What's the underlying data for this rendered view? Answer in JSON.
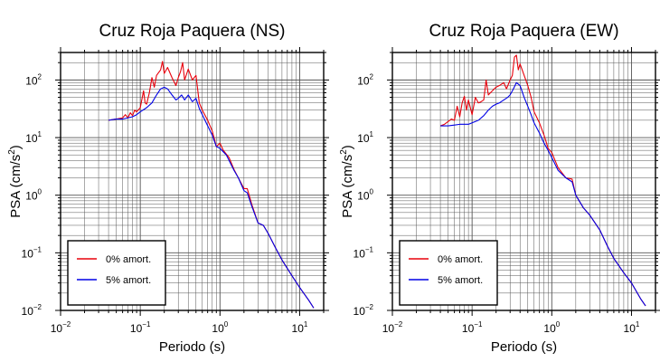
{
  "chart_data": [
    {
      "type": "line",
      "title": "Cruz Roja Paquera (NS)",
      "xlabel": "Periodo (s)",
      "ylabel": "PSA (cm/s²)",
      "xscale": "log",
      "yscale": "log",
      "xlim": [
        0.01,
        20
      ],
      "ylim": [
        0.01,
        300
      ],
      "grid": true,
      "legend_position": "bottom-left",
      "x_ticks": [
        "10⁻²",
        "10⁻¹",
        "10⁰",
        "10¹"
      ],
      "y_ticks": [
        "10⁻²",
        "10⁻¹",
        "10⁰",
        "10¹",
        "10²"
      ],
      "series": [
        {
          "name": "0% amort.",
          "color": "#e8000b",
          "points": [
            [
              0.04,
              20
            ],
            [
              0.05,
              21
            ],
            [
              0.06,
              22
            ],
            [
              0.065,
              25
            ],
            [
              0.07,
              22
            ],
            [
              0.075,
              27
            ],
            [
              0.08,
              24
            ],
            [
              0.085,
              30
            ],
            [
              0.09,
              28
            ],
            [
              0.1,
              33
            ],
            [
              0.11,
              65
            ],
            [
              0.115,
              40
            ],
            [
              0.12,
              38
            ],
            [
              0.13,
              60
            ],
            [
              0.14,
              110
            ],
            [
              0.15,
              75
            ],
            [
              0.16,
              120
            ],
            [
              0.18,
              150
            ],
            [
              0.19,
              210
            ],
            [
              0.2,
              130
            ],
            [
              0.22,
              165
            ],
            [
              0.25,
              110
            ],
            [
              0.28,
              80
            ],
            [
              0.3,
              110
            ],
            [
              0.32,
              140
            ],
            [
              0.34,
              200
            ],
            [
              0.36,
              100
            ],
            [
              0.4,
              155
            ],
            [
              0.45,
              100
            ],
            [
              0.5,
              120
            ],
            [
              0.55,
              40
            ],
            [
              0.6,
              30
            ],
            [
              0.7,
              20
            ],
            [
              0.8,
              13
            ],
            [
              0.9,
              7
            ],
            [
              1.0,
              8
            ],
            [
              1.1,
              6
            ],
            [
              1.3,
              4.5
            ],
            [
              1.5,
              2.8
            ],
            [
              1.7,
              2
            ],
            [
              2.0,
              1.3
            ],
            [
              2.2,
              1.3
            ],
            [
              2.5,
              0.7
            ],
            [
              3.0,
              0.33
            ],
            [
              3.5,
              0.3
            ],
            [
              4,
              0.22
            ],
            [
              5,
              0.12
            ],
            [
              6,
              0.075
            ],
            [
              8,
              0.04
            ],
            [
              10,
              0.025
            ],
            [
              13,
              0.015
            ],
            [
              15,
              0.011
            ]
          ]
        },
        {
          "name": "5% amort.",
          "color": "#0000e6",
          "points": [
            [
              0.04,
              20
            ],
            [
              0.05,
              21
            ],
            [
              0.06,
              21
            ],
            [
              0.07,
              22
            ],
            [
              0.08,
              23
            ],
            [
              0.09,
              25
            ],
            [
              0.1,
              28
            ],
            [
              0.12,
              33
            ],
            [
              0.14,
              40
            ],
            [
              0.16,
              55
            ],
            [
              0.18,
              70
            ],
            [
              0.2,
              75
            ],
            [
              0.22,
              70
            ],
            [
              0.25,
              55
            ],
            [
              0.28,
              45
            ],
            [
              0.3,
              48
            ],
            [
              0.33,
              55
            ],
            [
              0.36,
              45
            ],
            [
              0.4,
              55
            ],
            [
              0.45,
              42
            ],
            [
              0.5,
              48
            ],
            [
              0.55,
              32
            ],
            [
              0.6,
              25
            ],
            [
              0.7,
              16
            ],
            [
              0.8,
              11
            ],
            [
              0.9,
              7
            ],
            [
              1.0,
              6.5
            ],
            [
              1.2,
              5
            ],
            [
              1.5,
              2.7
            ],
            [
              1.7,
              2
            ],
            [
              2.0,
              1.2
            ],
            [
              2.2,
              1.1
            ],
            [
              2.5,
              0.65
            ],
            [
              3,
              0.33
            ],
            [
              3.5,
              0.3
            ],
            [
              4,
              0.22
            ],
            [
              5,
              0.12
            ],
            [
              6,
              0.075
            ],
            [
              8,
              0.04
            ],
            [
              10,
              0.025
            ],
            [
              13,
              0.015
            ],
            [
              15,
              0.011
            ]
          ]
        }
      ]
    },
    {
      "type": "line",
      "title": "Cruz Roja Paquera (EW)",
      "xlabel": "Periodo (s)",
      "ylabel": "PSA (cm/s²)",
      "xscale": "log",
      "yscale": "log",
      "xlim": [
        0.01,
        20
      ],
      "ylim": [
        0.01,
        300
      ],
      "grid": true,
      "legend_position": "bottom-left",
      "x_ticks": [
        "10⁻²",
        "10⁻¹",
        "10⁰",
        "10¹"
      ],
      "y_ticks": [
        "10⁻²",
        "10⁻¹",
        "10⁰",
        "10¹",
        "10²"
      ],
      "series": [
        {
          "name": "0% amort.",
          "color": "#e8000b",
          "points": [
            [
              0.04,
              16
            ],
            [
              0.045,
              17
            ],
            [
              0.05,
              19
            ],
            [
              0.055,
              21
            ],
            [
              0.06,
              20
            ],
            [
              0.065,
              35
            ],
            [
              0.07,
              23
            ],
            [
              0.075,
              40
            ],
            [
              0.08,
              52
            ],
            [
              0.085,
              30
            ],
            [
              0.09,
              45
            ],
            [
              0.1,
              25
            ],
            [
              0.11,
              50
            ],
            [
              0.12,
              40
            ],
            [
              0.13,
              42
            ],
            [
              0.14,
              45
            ],
            [
              0.15,
              100
            ],
            [
              0.16,
              55
            ],
            [
              0.18,
              65
            ],
            [
              0.2,
              75
            ],
            [
              0.22,
              80
            ],
            [
              0.25,
              90
            ],
            [
              0.27,
              70
            ],
            [
              0.3,
              100
            ],
            [
              0.32,
              120
            ],
            [
              0.34,
              250
            ],
            [
              0.36,
              270
            ],
            [
              0.38,
              150
            ],
            [
              0.4,
              190
            ],
            [
              0.45,
              120
            ],
            [
              0.5,
              80
            ],
            [
              0.55,
              50
            ],
            [
              0.6,
              28
            ],
            [
              0.7,
              18
            ],
            [
              0.8,
              11
            ],
            [
              0.9,
              6.5
            ],
            [
              1.0,
              5.5
            ],
            [
              1.2,
              3
            ],
            [
              1.5,
              2
            ],
            [
              1.8,
              1.9
            ],
            [
              2.0,
              1
            ],
            [
              2.5,
              0.6
            ],
            [
              3,
              0.45
            ],
            [
              4,
              0.25
            ],
            [
              5,
              0.13
            ],
            [
              6,
              0.08
            ],
            [
              8,
              0.045
            ],
            [
              10,
              0.03
            ],
            [
              13,
              0.016
            ],
            [
              15,
              0.012
            ]
          ]
        },
        {
          "name": "5% amort.",
          "color": "#0000e6",
          "points": [
            [
              0.04,
              16
            ],
            [
              0.05,
              16
            ],
            [
              0.06,
              16.5
            ],
            [
              0.07,
              17
            ],
            [
              0.08,
              17
            ],
            [
              0.09,
              17
            ],
            [
              0.1,
              18
            ],
            [
              0.12,
              20
            ],
            [
              0.14,
              24
            ],
            [
              0.16,
              30
            ],
            [
              0.18,
              35
            ],
            [
              0.2,
              38
            ],
            [
              0.22,
              40
            ],
            [
              0.25,
              45
            ],
            [
              0.28,
              50
            ],
            [
              0.3,
              55
            ],
            [
              0.33,
              70
            ],
            [
              0.36,
              90
            ],
            [
              0.4,
              80
            ],
            [
              0.45,
              50
            ],
            [
              0.5,
              35
            ],
            [
              0.55,
              25
            ],
            [
              0.6,
              18
            ],
            [
              0.7,
              12
            ],
            [
              0.8,
              8
            ],
            [
              0.9,
              6
            ],
            [
              1.0,
              4.5
            ],
            [
              1.2,
              2.7
            ],
            [
              1.5,
              2
            ],
            [
              1.8,
              1.7
            ],
            [
              2.0,
              1
            ],
            [
              2.5,
              0.6
            ],
            [
              3,
              0.45
            ],
            [
              4,
              0.25
            ],
            [
              5,
              0.13
            ],
            [
              6,
              0.08
            ],
            [
              8,
              0.045
            ],
            [
              10,
              0.03
            ],
            [
              13,
              0.016
            ],
            [
              15,
              0.012
            ]
          ]
        }
      ]
    }
  ]
}
